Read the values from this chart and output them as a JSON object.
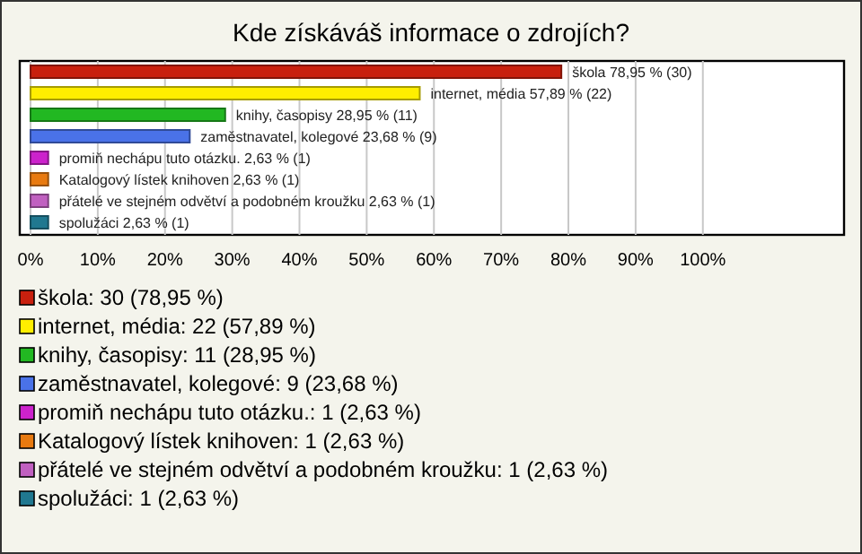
{
  "chart_data": {
    "type": "bar",
    "orientation": "horizontal",
    "title": "Kde získáváš informace o zdrojích?",
    "categories": [
      "škola",
      "internet, média",
      "knihy, časopisy",
      "zaměstnavatel, kolegové",
      "promiň nechápu tuto otázku.",
      "Katalogový lístek knihoven",
      "přátelé ve stejném odvětví a podobném kroužku",
      "spolužáci"
    ],
    "values": [
      78.95,
      57.89,
      28.95,
      23.68,
      2.63,
      2.63,
      2.63,
      2.63
    ],
    "colors": [
      "#c8200e",
      "#ffee00",
      "#22b822",
      "#4a72e8",
      "#cc22cc",
      "#e87a10",
      "#c060c0",
      "#207890"
    ],
    "value_labels": [
      "78,95 % (30)",
      "57,89 % (22)",
      "28,95 % (11)",
      "23,68 % (9)",
      "2,63 % (1)",
      "2,63 % (1)",
      "2,63 % (1)",
      "2,63 % (1)"
    ],
    "xlim": [
      0,
      121
    ],
    "xticks": [
      {
        "value": 0,
        "label": "0%"
      },
      {
        "value": 10,
        "label": "10%"
      },
      {
        "value": 20,
        "label": "20%"
      },
      {
        "value": 30,
        "label": "30%"
      },
      {
        "value": 40,
        "label": "40%"
      },
      {
        "value": 50,
        "label": "50%"
      },
      {
        "value": 60,
        "label": "60%"
      },
      {
        "value": 70,
        "label": "70%"
      },
      {
        "value": 80,
        "label": "80%"
      },
      {
        "value": 90,
        "label": "90%"
      },
      {
        "value": 100,
        "label": "100%"
      }
    ],
    "grid": "x",
    "annotations": [
      "škola: 30 (78,95 %)",
      "internet, média: 22 (57,89 %)",
      "knihy, časopisy: 11 (28,95 %)",
      "zaměstnavatel, kolegové: 9 (23,68 %)",
      "promiň nechápu tuto otázku.: 1 (2,63 %)",
      "Katalogový lístek knihoven: 1 (2,63 %)",
      "přátelé ve stejném odvětví a podobném kroužku: 1 (2,63 %)",
      "spolužáci: 1 (2,63 %)"
    ]
  }
}
